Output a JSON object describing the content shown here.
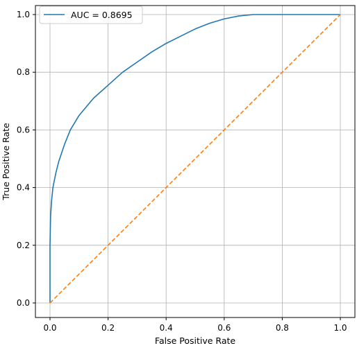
{
  "chart_data": {
    "type": "line",
    "title": "",
    "xlabel": "False Positive Rate",
    "ylabel": "True Positive Rate",
    "xlim": [
      0,
      1
    ],
    "ylim": [
      0,
      1
    ],
    "xticks": [
      "0.0",
      "0.2",
      "0.4",
      "0.6",
      "0.8",
      "1.0"
    ],
    "yticks": [
      "0.0",
      "0.2",
      "0.4",
      "0.6",
      "0.8",
      "1.0"
    ],
    "grid": true,
    "legend": {
      "placement": "top-left",
      "entries": [
        "AUC = 0.8695"
      ]
    },
    "series": [
      {
        "name": "AUC = 0.8695",
        "color": "#1f77b4",
        "style": "solid",
        "x": [
          0.0,
          0.0,
          0.002,
          0.005,
          0.01,
          0.02,
          0.03,
          0.05,
          0.07,
          0.1,
          0.15,
          0.2,
          0.25,
          0.3,
          0.35,
          0.4,
          0.45,
          0.5,
          0.55,
          0.6,
          0.65,
          0.7,
          0.75,
          0.8,
          0.9,
          1.0
        ],
        "y": [
          0.0,
          0.2,
          0.3,
          0.35,
          0.4,
          0.45,
          0.49,
          0.55,
          0.6,
          0.65,
          0.71,
          0.755,
          0.8,
          0.835,
          0.87,
          0.9,
          0.925,
          0.95,
          0.97,
          0.985,
          0.995,
          1.0,
          1.0,
          1.0,
          1.0,
          1.0
        ]
      },
      {
        "name": "",
        "color": "#ff7f0e",
        "style": "dashed",
        "x": [
          0,
          1
        ],
        "y": [
          0,
          1
        ]
      }
    ]
  }
}
